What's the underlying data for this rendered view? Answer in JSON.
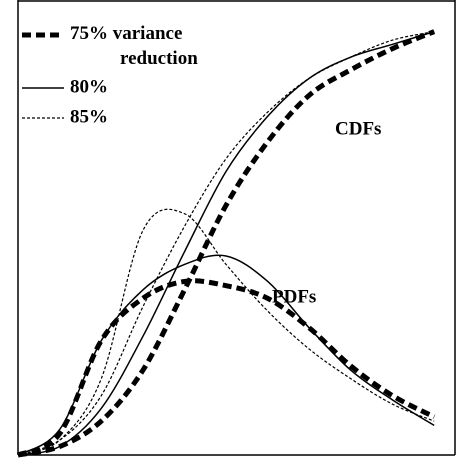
{
  "chart_data": {
    "type": "line",
    "x": [
      0,
      2,
      4,
      6,
      8,
      10,
      12,
      14,
      16,
      18,
      20
    ],
    "xlim": [
      0,
      21
    ],
    "ylim": [
      0,
      1.07
    ],
    "series": [
      {
        "name": "75% variance\nreduction",
        "color": "#000000",
        "line_style": "dashed-bold",
        "cdf": [
          0,
          0.02,
          0.08,
          0.2,
          0.39,
          0.59,
          0.74,
          0.85,
          0.91,
          0.96,
          1.0
        ],
        "pdf": [
          0,
          0.05,
          0.27,
          0.37,
          0.41,
          0.4,
          0.37,
          0.3,
          0.21,
          0.14,
          0.09
        ]
      },
      {
        "name": "80%",
        "color": "#000000",
        "line_style": "solid",
        "cdf": [
          0,
          0.02,
          0.11,
          0.28,
          0.48,
          0.67,
          0.8,
          0.89,
          0.94,
          0.97,
          1.0
        ],
        "pdf": [
          0,
          0.06,
          0.27,
          0.39,
          0.45,
          0.47,
          0.41,
          0.3,
          0.2,
          0.13,
          0.07
        ]
      },
      {
        "name": "85%",
        "color": "#000000",
        "line_style": "dotted",
        "cdf": [
          0,
          0.035,
          0.14,
          0.35,
          0.54,
          0.7,
          0.81,
          0.89,
          0.94,
          0.98,
          1.0
        ],
        "pdf": [
          0,
          0.035,
          0.18,
          0.53,
          0.57,
          0.45,
          0.34,
          0.25,
          0.18,
          0.12,
          0.08
        ]
      }
    ],
    "annotations": [
      "CDFs",
      "PDFs"
    ]
  }
}
